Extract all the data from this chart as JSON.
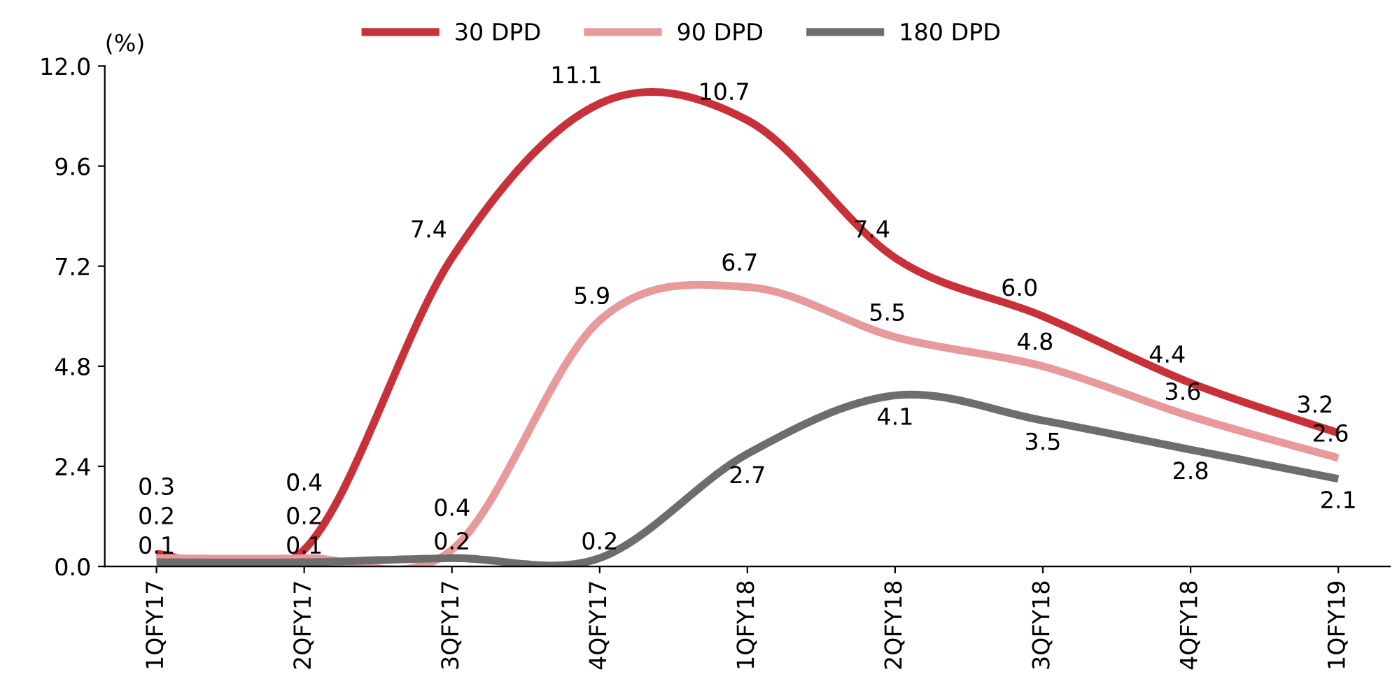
{
  "chart_data": {
    "type": "line",
    "ylabel": "(%)",
    "categories": [
      "1QFY17",
      "2QFY17",
      "3QFY17",
      "4QFY17",
      "1QFY18",
      "2QFY18",
      "3QFY18",
      "4QFY18",
      "1QFY19"
    ],
    "series": [
      {
        "name": "30 DPD",
        "color": "#c8313a",
        "values": [
          0.3,
          0.4,
          7.4,
          11.1,
          10.7,
          7.4,
          6.0,
          4.4,
          3.2
        ],
        "value_labels": [
          "0.3",
          "0.4",
          "7.4",
          "11.1",
          "10.7",
          "7.4",
          "6.0",
          "4.4",
          "3.2"
        ]
      },
      {
        "name": "90 DPD",
        "color": "#e8999b",
        "values": [
          0.2,
          0.2,
          0.4,
          5.9,
          6.7,
          5.5,
          4.8,
          3.6,
          2.6
        ],
        "value_labels": [
          "0.2",
          "0.2",
          "0.4",
          "5.9",
          "6.7",
          "5.5",
          "4.8",
          "3.6",
          "2.6"
        ]
      },
      {
        "name": "180 DPD",
        "color": "#6d6d6d",
        "values": [
          0.1,
          0.1,
          0.2,
          0.2,
          2.7,
          4.1,
          3.5,
          2.8,
          2.1
        ],
        "value_labels": [
          "0.1",
          "0.1",
          "0.2",
          "0.2",
          "2.7",
          "4.1",
          "3.5",
          "2.8",
          "2.1"
        ]
      }
    ],
    "ylim": [
      0,
      12
    ],
    "yticks": [
      {
        "value": 0,
        "label": "0.0"
      },
      2.4,
      4.8,
      7.2,
      9.6,
      {
        "value": 12,
        "label": "12.0"
      }
    ],
    "legend": "top",
    "grid": false,
    "marker": "none",
    "line_style": "solid"
  }
}
